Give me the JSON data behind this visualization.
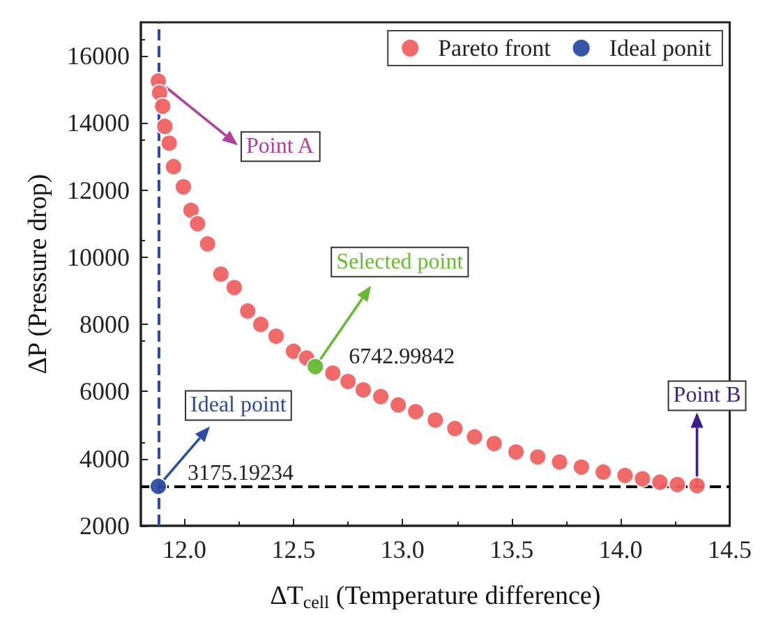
{
  "chart_data": {
    "type": "scatter",
    "xlabel": "ΔT$_{cell}$ (Temperature difference)",
    "ylabel": "ΔP (Pressure drop)",
    "xlim": [
      11.8,
      14.5
    ],
    "xticks": [
      {
        "value": 12,
        "label": "12.0"
      },
      {
        "value": 12.5,
        "label": "12.5"
      },
      {
        "value": 13,
        "label": "13.0"
      },
      {
        "value": 13.5,
        "label": "13.5"
      },
      {
        "value": 14,
        "label": "14.0"
      },
      {
        "value": 14.5,
        "label": "14.5"
      }
    ],
    "ylim": [
      2000,
      17000
    ],
    "yticks": [
      2000,
      4000,
      6000,
      8000,
      10000,
      12000,
      14000,
      16000
    ],
    "series": [
      {
        "name": "Pareto front",
        "color": "#f06262",
        "x": [
          11.88,
          11.886,
          11.9,
          11.91,
          11.93,
          11.95,
          11.995,
          12.03,
          12.06,
          12.106,
          12.167,
          12.228,
          12.29,
          12.35,
          12.42,
          12.5,
          12.56,
          12.62,
          12.68,
          12.75,
          12.82,
          12.9,
          12.98,
          13.06,
          13.15,
          13.24,
          13.33,
          13.42,
          13.52,
          13.62,
          13.72,
          13.82,
          13.92,
          14.02,
          14.1,
          14.18,
          14.26,
          14.35
        ],
        "values": [
          15250,
          14900,
          14500,
          13900,
          13400,
          12700,
          12100,
          11400,
          11000,
          10400,
          9500,
          9100,
          8400,
          8000,
          7650,
          7200,
          7000,
          null,
          6550,
          6300,
          6050,
          5850,
          5600,
          5400,
          5150,
          4900,
          4650,
          4450,
          4200,
          4050,
          3900,
          3750,
          3600,
          3500,
          3400,
          3300,
          3230,
          3200
        ]
      },
      {
        "name": "Ideal ponit",
        "color": "#2e4ca3",
        "x": [
          11.88
        ],
        "values": [
          3175.19234
        ]
      },
      {
        "color": "#66bb33",
        "x": [
          12.6
        ],
        "values": [
          6742.99842
        ]
      }
    ],
    "marker": "circle",
    "legend": "top right",
    "grid": false,
    "ref_lines": [
      {
        "axis": "x",
        "value": 11.88,
        "color": "#2e4ca3",
        "line_style": "dashed"
      },
      {
        "axis": "y",
        "value": 3175.19234,
        "color": "#000000",
        "line_style": "dashed"
      }
    ],
    "annotations": [
      {
        "text": "Point A",
        "x": 11.88,
        "y": 15250
      },
      {
        "text": "Selected point",
        "x": 12.6,
        "y": 6742.99842
      },
      {
        "text": "Ideal point",
        "x": 11.88,
        "y": 3175.19234
      },
      {
        "text": "Point B",
        "x": 14.35,
        "y": 3175
      },
      {
        "text": "6742.99842",
        "x": 12.6,
        "y": 6742.99842
      },
      {
        "text": "3175.19234",
        "x": 11.88,
        "y": 3175.19234
      }
    ]
  }
}
